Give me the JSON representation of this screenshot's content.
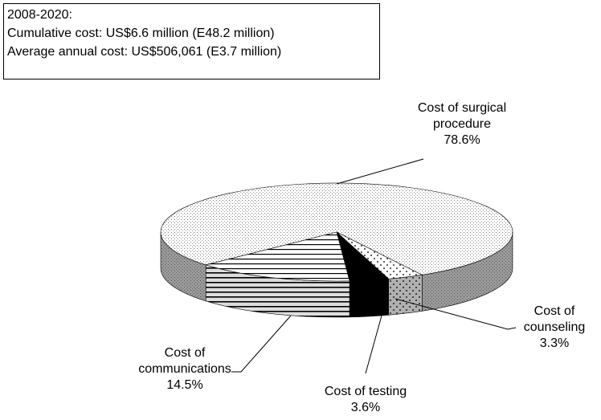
{
  "chart_data": {
    "type": "pie",
    "annotation": [
      "2008-2020:",
      "Cumulative cost: US$6.6 million (E48.2 million)",
      "Average annual cost: US$506,061 (E3.7 million)"
    ],
    "categories": [
      "Cost of surgical procedure",
      "Cost of counseling",
      "Cost of testing",
      "Cost of communications"
    ],
    "values": [
      78.6,
      3.3,
      3.6,
      14.5
    ],
    "value_labels": [
      "78.6%",
      "3.3%",
      "3.6%",
      "14.5%"
    ]
  }
}
